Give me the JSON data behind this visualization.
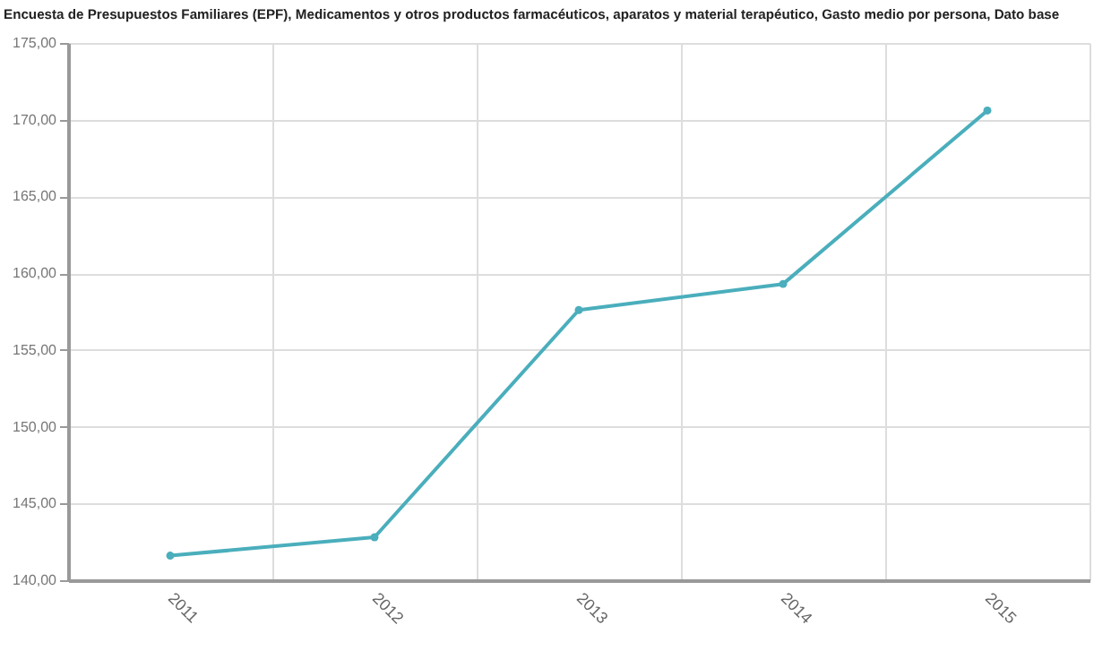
{
  "chart_data": {
    "type": "line",
    "title": "Encuesta de Presupuestos Familiares (EPF), Medicamentos y otros productos farmacéuticos, aparatos y material terapéutico, Gasto medio por persona, Dato base",
    "categories": [
      "2011",
      "2012",
      "2013",
      "2014",
      "2015"
    ],
    "series": [
      {
        "color": "#4aaebc",
        "values": [
          141.6,
          142.8,
          157.6,
          159.3,
          170.6
        ]
      }
    ],
    "ylim": [
      140,
      175
    ],
    "yticks": [
      {
        "value": 140,
        "label": "140,00"
      },
      {
        "value": 145,
        "label": "145,00"
      },
      {
        "value": 150,
        "label": "150,00"
      },
      {
        "value": 155,
        "label": "155,00"
      },
      {
        "value": 160,
        "label": "160,00"
      },
      {
        "value": 165,
        "label": "165,00"
      },
      {
        "value": 170,
        "label": "170,00"
      },
      {
        "value": 175,
        "label": "175,00"
      }
    ],
    "grid": true,
    "marker": "circle",
    "line_style": "solid"
  }
}
